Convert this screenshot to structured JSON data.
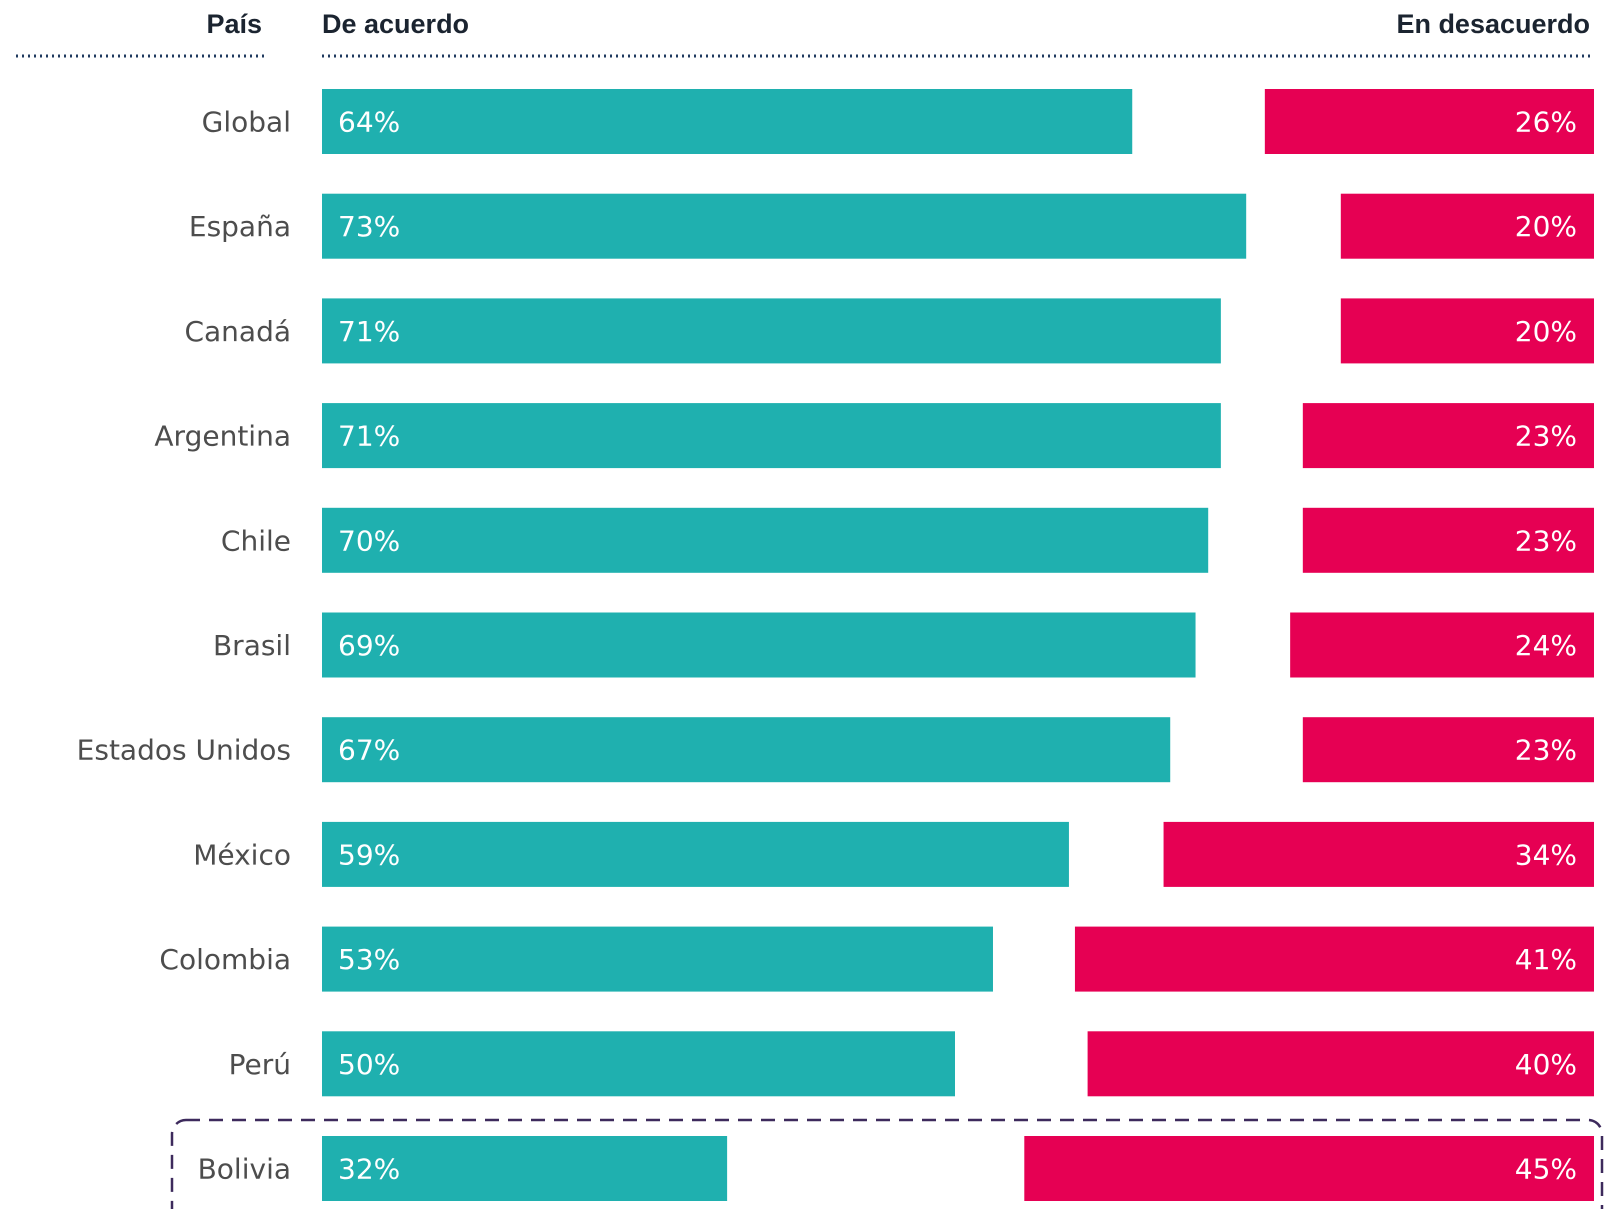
{
  "header": {
    "country_label": "País",
    "agree_label": "De acuerdo",
    "disagree_label": "En desacuerdo"
  },
  "colors": {
    "agree": "#1fb0af",
    "disagree": "#e60053",
    "header_rule": "#1f3a5f",
    "highlight_border": "#3d2a5c",
    "country_text": "#4d4d4d"
  },
  "chart_data": {
    "type": "bar",
    "orientation": "horizontal",
    "stacked": false,
    "categories": [
      "Global",
      "España",
      "Canadá",
      "Argentina",
      "Chile",
      "Brasil",
      "Estados Unidos",
      "México",
      "Colombia",
      "Perú",
      "Bolivia"
    ],
    "series": [
      {
        "name": "De acuerdo",
        "values": [
          64,
          73,
          71,
          71,
          70,
          69,
          67,
          59,
          53,
          50,
          32
        ],
        "labels": [
          "64%",
          "73%",
          "71%",
          "71%",
          "70%",
          "69%",
          "67%",
          "59%",
          "53%",
          "50%",
          "32%"
        ]
      },
      {
        "name": "En desacuerdo",
        "values": [
          26,
          20,
          20,
          23,
          23,
          24,
          23,
          34,
          41,
          40,
          45
        ],
        "labels": [
          "26%",
          "20%",
          "20%",
          "23%",
          "23%",
          "24%",
          "23%",
          "34%",
          "41%",
          "40%",
          "45%"
        ]
      }
    ],
    "highlighted_category": "Bolivia",
    "unit": "%",
    "xlim": [
      0,
      100
    ],
    "grid": false,
    "legend": "top"
  }
}
